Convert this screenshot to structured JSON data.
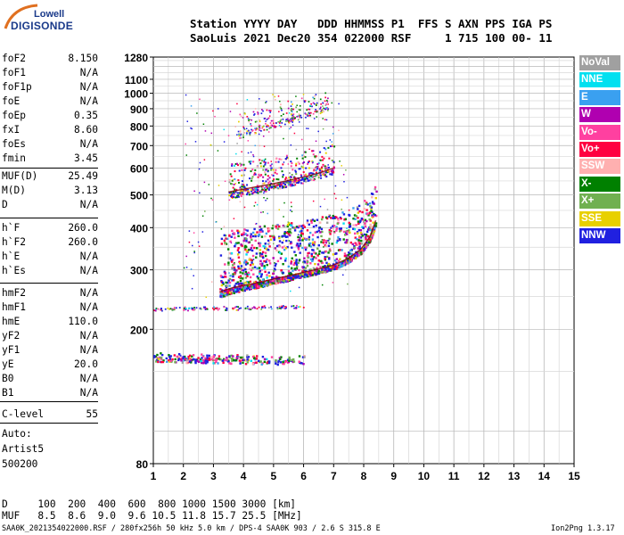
{
  "logo": {
    "line1": "Lowell",
    "line2": "DIGISONDE"
  },
  "header": {
    "labels": "Station YYYY DAY   DDD HHMMSS P1  FFS S AXN PPS IGA PS",
    "values": "SaoLuis 2021 Dec20 354 022000 RSF     1 715 100 00- 11"
  },
  "params_group1": [
    {
      "name": "foF2",
      "value": "8.150"
    },
    {
      "name": "foF1",
      "value": "N/A"
    },
    {
      "name": "foF1p",
      "value": "N/A"
    },
    {
      "name": "foE",
      "value": "N/A"
    },
    {
      "name": "foEp",
      "value": "0.35"
    },
    {
      "name": "fxI",
      "value": "8.60"
    },
    {
      "name": "foEs",
      "value": "N/A"
    },
    {
      "name": "fmin",
      "value": "3.45"
    }
  ],
  "params_group2": [
    {
      "name": "MUF(D)",
      "value": "25.49"
    },
    {
      "name": "M(D)",
      "value": "3.13"
    },
    {
      "name": "D",
      "value": "N/A"
    }
  ],
  "params_group3": [
    {
      "name": "h`F",
      "value": "260.0"
    },
    {
      "name": "h`F2",
      "value": "260.0"
    },
    {
      "name": "h`E",
      "value": "N/A"
    },
    {
      "name": "h`Es",
      "value": "N/A"
    }
  ],
  "params_group4": [
    {
      "name": "hmF2",
      "value": "N/A"
    },
    {
      "name": "hmF1",
      "value": "N/A"
    },
    {
      "name": "hmE",
      "value": "110.0"
    },
    {
      "name": "yF2",
      "value": "N/A"
    },
    {
      "name": "yF1",
      "value": "N/A"
    },
    {
      "name": "yE",
      "value": "20.0"
    },
    {
      "name": "B0",
      "value": "N/A"
    },
    {
      "name": "B1",
      "value": "N/A"
    }
  ],
  "params_group5": [
    {
      "name": "C-level",
      "value": "55"
    }
  ],
  "autoscaling": [
    "Auto:",
    "Artist5",
    "500200"
  ],
  "legend": [
    {
      "label": "NoVal",
      "color": "#a0a0a0"
    },
    {
      "label": "NNE",
      "color": "#00e0f0"
    },
    {
      "label": "E",
      "color": "#3aa0f0"
    },
    {
      "label": "W",
      "color": "#b000b0"
    },
    {
      "label": "Vo-",
      "color": "#ff40a0"
    },
    {
      "label": "Vo+",
      "color": "#ff0040"
    },
    {
      "label": "SSW",
      "color": "#ffb0b0"
    },
    {
      "label": "X-",
      "color": "#008000"
    },
    {
      "label": "X+",
      "color": "#70b050"
    },
    {
      "label": "SSE",
      "color": "#e8d000"
    },
    {
      "label": "NNW",
      "color": "#2020e0"
    }
  ],
  "footer": {
    "d_row": "D     100  200  400  600  800 1000 1500 3000 [km]",
    "muf_row": "MUF   8.5  8.6  9.0  9.6 10.5 11.8 15.7 25.5 [MHz]",
    "info": "SAA0K_2021354022000.RSF / 280fx256h 50 kHz 5.0 km / DPS-4 SAA0K 903 / 2.6 S 315.8 E",
    "version": "Ion2Png 1.3.17"
  },
  "chart_data": {
    "type": "scatter",
    "xlabel": "",
    "ylabel": "",
    "xlim": [
      1,
      15
    ],
    "ylim": [
      80,
      1280
    ],
    "x_ticks": [
      1,
      2,
      3,
      4,
      5,
      6,
      7,
      8,
      9,
      10,
      11,
      12,
      13,
      14,
      15
    ],
    "y_ticks": [
      80,
      200,
      300,
      400,
      500,
      600,
      700,
      800,
      900,
      1000,
      1100,
      1280
    ],
    "y_scale": "log",
    "grid": true,
    "traces": [
      {
        "name": "F2 first hop",
        "x": [
          3.2,
          3.6,
          4.0,
          4.5,
          5.0,
          5.5,
          6.0,
          6.5,
          7.0,
          7.5,
          7.9,
          8.2,
          8.4
        ],
        "y": [
          258,
          265,
          270,
          275,
          282,
          288,
          295,
          302,
          310,
          325,
          345,
          375,
          420
        ]
      },
      {
        "name": "F2 second hop",
        "x": [
          3.5,
          4.0,
          4.5,
          5.0,
          5.5,
          6.0,
          6.5,
          7.0
        ],
        "y": [
          510,
          520,
          530,
          540,
          552,
          565,
          580,
          600
        ]
      },
      {
        "name": "F2 third hop",
        "x": [
          3.8,
          4.2,
          4.6,
          5.0,
          5.5,
          6.0,
          6.5,
          6.8
        ],
        "y": [
          760,
          780,
          800,
          820,
          845,
          870,
          895,
          910
        ]
      },
      {
        "name": "Es trace",
        "x": [
          1.0,
          1.5,
          2.0,
          2.5,
          3.0,
          3.5,
          4.0,
          4.5,
          5.0,
          5.5,
          6.0
        ],
        "y": [
          165,
          165,
          164,
          164,
          163,
          163,
          163,
          162,
          162,
          162,
          162
        ]
      },
      {
        "name": "E trace",
        "x": [
          1.0,
          1.5,
          2.0,
          2.5,
          3.0,
          3.5,
          4.0,
          4.5,
          5.0,
          5.5,
          6.0
        ],
        "y": [
          230,
          230,
          231,
          231,
          232,
          232,
          232,
          233,
          233,
          234,
          234
        ]
      }
    ]
  }
}
